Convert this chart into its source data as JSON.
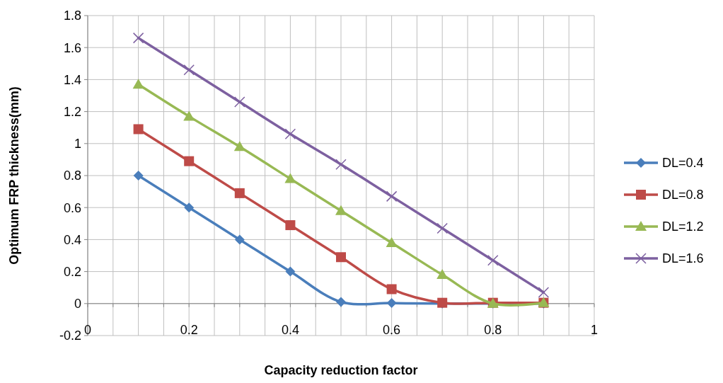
{
  "chart_data": {
    "type": "line",
    "xlabel": "Capacity reduction factor",
    "ylabel": "Optimum FRP thickness(mm)",
    "x": [
      0.1,
      0.2,
      0.3,
      0.4,
      0.5,
      0.6,
      0.7,
      0.8,
      0.9
    ],
    "series": [
      {
        "name": "DL=0.4",
        "color": "#4a7ebb",
        "marker": "diamond",
        "values": [
          0.8,
          0.6,
          0.4,
          0.2,
          0.01,
          0.003,
          0,
          0,
          0
        ]
      },
      {
        "name": "DL=0.8",
        "color": "#be4b48",
        "marker": "square",
        "values": [
          1.09,
          0.89,
          0.69,
          0.49,
          0.29,
          0.09,
          0.005,
          0.005,
          0.005
        ]
      },
      {
        "name": "DL=1.2",
        "color": "#98b954",
        "marker": "triangle",
        "values": [
          1.37,
          1.17,
          0.98,
          0.78,
          0.58,
          0.38,
          0.18,
          0.0,
          0.005
        ]
      },
      {
        "name": "DL=1.6",
        "color": "#7d60a0",
        "marker": "cross",
        "values": [
          1.66,
          1.46,
          1.26,
          1.06,
          0.87,
          0.67,
          0.47,
          0.27,
          0.07
        ]
      }
    ],
    "xlim": [
      0,
      1
    ],
    "xticks": [
      0,
      {
        "value": 0.05,
        "label": null
      },
      {
        "value": 0.1,
        "label": null
      },
      {
        "value": 0.15,
        "label": null
      },
      0.2,
      {
        "value": 0.25,
        "label": null
      },
      {
        "value": 0.3,
        "label": null
      },
      {
        "value": 0.35,
        "label": null
      },
      0.4,
      {
        "value": 0.45,
        "label": null
      },
      {
        "value": 0.5,
        "label": null
      },
      {
        "value": 0.55,
        "label": null
      },
      0.6,
      {
        "value": 0.65,
        "label": null
      },
      {
        "value": 0.7,
        "label": null
      },
      {
        "value": 0.75,
        "label": null
      },
      0.8,
      {
        "value": 0.85,
        "label": null
      },
      {
        "value": 0.9,
        "label": null
      },
      {
        "value": 0.95,
        "label": null
      },
      1
    ],
    "ylim": [
      -0.2,
      1.8
    ],
    "yticks": [
      -0.2,
      0,
      0.2,
      0.4,
      0.6,
      0.8,
      1,
      1.2,
      1.4,
      1.6,
      1.8
    ],
    "grid": true,
    "legend": "right"
  }
}
